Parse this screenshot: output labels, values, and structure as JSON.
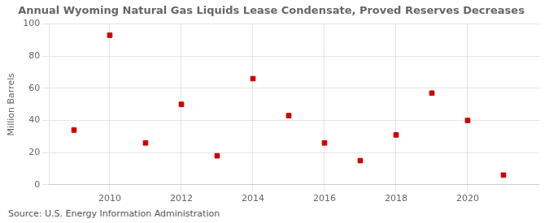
{
  "chart_data": {
    "type": "scatter",
    "title": "Annual Wyoming Natural Gas Liquids Lease Condensate, Proved Reserves Decreases",
    "ylabel": "Million Barrels",
    "annotations": [
      "Source: U.S. Energy Information Administration"
    ],
    "x": [
      2009,
      2010,
      2011,
      2012,
      2013,
      2014,
      2015,
      2016,
      2017,
      2018,
      2019,
      2020,
      2021
    ],
    "values": [
      34,
      93,
      26,
      50,
      18,
      66,
      43,
      26,
      15,
      31,
      57,
      40,
      6
    ],
    "color": "#cc0000",
    "marker": "square",
    "xlim": [
      2008.3,
      2022.0
    ],
    "xticks": [
      2010,
      2012,
      2014,
      2016,
      2018,
      2020
    ],
    "ylim": [
      0,
      100
    ],
    "yticks": [
      0,
      20,
      40,
      60,
      80,
      100
    ],
    "grid": true
  }
}
